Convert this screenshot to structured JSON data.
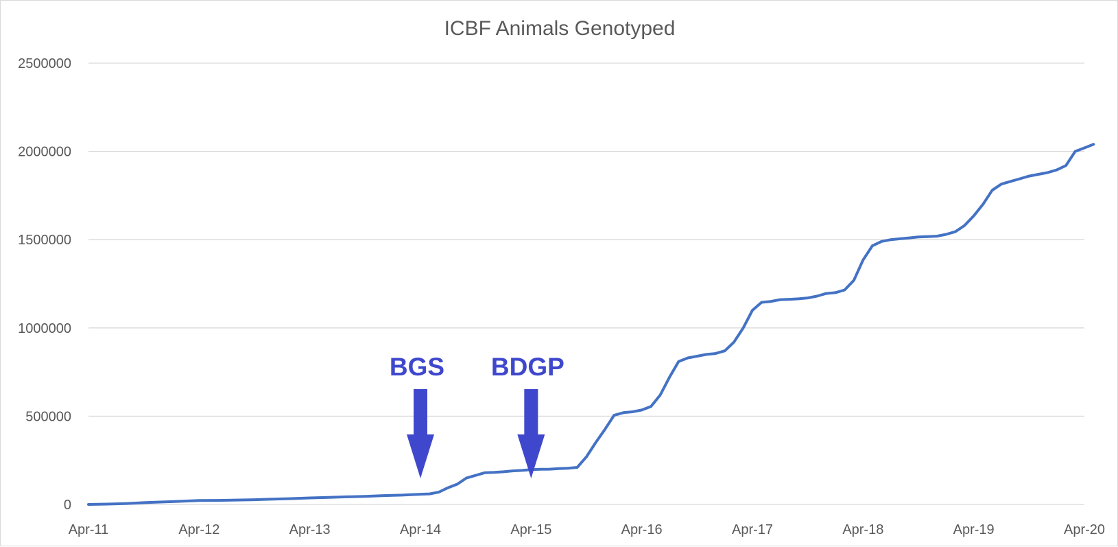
{
  "chart_data": {
    "type": "line",
    "title": "ICBF Animals Genotyped",
    "xlabel": "",
    "ylabel": "",
    "x_ticks": [
      "Apr-11",
      "Apr-12",
      "Apr-13",
      "Apr-14",
      "Apr-15",
      "Apr-16",
      "Apr-17",
      "Apr-18",
      "Apr-19",
      "Apr-20"
    ],
    "y_ticks": [
      "0",
      "500000",
      "1000000",
      "1500000",
      "2000000",
      "2500000"
    ],
    "ylim": [
      0,
      2500000
    ],
    "grid": true,
    "legend": "none",
    "colors": {
      "line": "#4472c4",
      "annotation": "#3f48cc",
      "grid": "#d9d9d9",
      "text": "#595959"
    },
    "series": [
      {
        "x": [
          "2011-04",
          "2011-06",
          "2011-08",
          "2011-10",
          "2011-12",
          "2012-02",
          "2012-04",
          "2012-06",
          "2012-08",
          "2012-10",
          "2012-12",
          "2013-02",
          "2013-04",
          "2013-06",
          "2013-08",
          "2013-10",
          "2013-12",
          "2014-02",
          "2014-04",
          "2014-05",
          "2014-06",
          "2014-07",
          "2014-08",
          "2014-09",
          "2014-10",
          "2014-11",
          "2014-12",
          "2015-01",
          "2015-02",
          "2015-03",
          "2015-04",
          "2015-05",
          "2015-06",
          "2015-07",
          "2015-08",
          "2015-09",
          "2015-10",
          "2015-11",
          "2015-12",
          "2016-01",
          "2016-02",
          "2016-03",
          "2016-04",
          "2016-05",
          "2016-06",
          "2016-07",
          "2016-08",
          "2016-09",
          "2016-10",
          "2016-11",
          "2016-12",
          "2017-01",
          "2017-02",
          "2017-03",
          "2017-04",
          "2017-05",
          "2017-06",
          "2017-07",
          "2017-08",
          "2017-09",
          "2017-10",
          "2017-11",
          "2017-12",
          "2018-01",
          "2018-02",
          "2018-03",
          "2018-04",
          "2018-05",
          "2018-06",
          "2018-07",
          "2018-08",
          "2018-09",
          "2018-10",
          "2018-11",
          "2018-12",
          "2019-01",
          "2019-02",
          "2019-03",
          "2019-04",
          "2019-05",
          "2019-06",
          "2019-07",
          "2019-08",
          "2019-09",
          "2019-10",
          "2019-11",
          "2019-12",
          "2020-01",
          "2020-02",
          "2020-03",
          "2020-04",
          "2020-05"
        ],
        "y": [
          0,
          2000,
          5000,
          10000,
          14000,
          18000,
          22000,
          23000,
          25000,
          27000,
          30000,
          33000,
          37000,
          40000,
          43000,
          46000,
          50000,
          53000,
          58000,
          60000,
          70000,
          95000,
          115000,
          150000,
          165000,
          180000,
          182000,
          185000,
          190000,
          193000,
          197000,
          199000,
          200000,
          203000,
          205000,
          210000,
          270000,
          350000,
          425000,
          505000,
          520000,
          525000,
          535000,
          555000,
          620000,
          720000,
          810000,
          830000,
          840000,
          850000,
          855000,
          870000,
          920000,
          1000000,
          1100000,
          1145000,
          1150000,
          1160000,
          1162000,
          1165000,
          1170000,
          1180000,
          1195000,
          1200000,
          1215000,
          1270000,
          1385000,
          1465000,
          1490000,
          1500000,
          1505000,
          1510000,
          1515000,
          1517000,
          1520000,
          1530000,
          1545000,
          1580000,
          1635000,
          1700000,
          1780000,
          1815000,
          1830000,
          1845000,
          1860000,
          1870000,
          1880000,
          1895000,
          1920000,
          2000000,
          2020000,
          2040000
        ]
      }
    ],
    "annotations": [
      {
        "text": "BGS",
        "x": "2014-04"
      },
      {
        "text": "BDGP",
        "x": "2015-04"
      }
    ]
  }
}
